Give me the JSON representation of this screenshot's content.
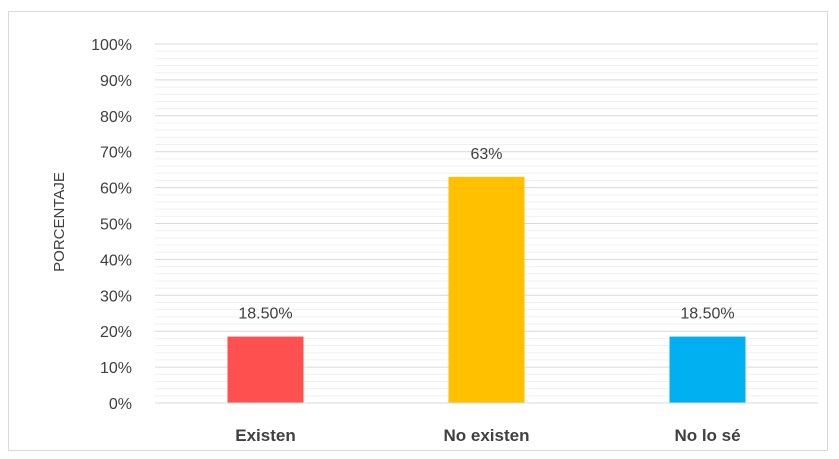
{
  "chart_data": {
    "type": "bar",
    "categories": [
      "Existen",
      "No existen",
      "No lo sé"
    ],
    "values": [
      18.5,
      63,
      18.5
    ],
    "data_labels": [
      "18.50%",
      "63%",
      "18.50%"
    ],
    "colors": [
      "#FF5050",
      "#FFC000",
      "#00B0F0"
    ],
    "title": "",
    "xlabel": "",
    "ylabel": "PORCENTAJE",
    "ylim": [
      0,
      100
    ],
    "y_ticks": [
      0,
      10,
      20,
      30,
      40,
      50,
      60,
      70,
      80,
      90,
      100
    ],
    "y_tick_format": "%",
    "grid": true,
    "minor_grid": true,
    "legend": "none"
  }
}
